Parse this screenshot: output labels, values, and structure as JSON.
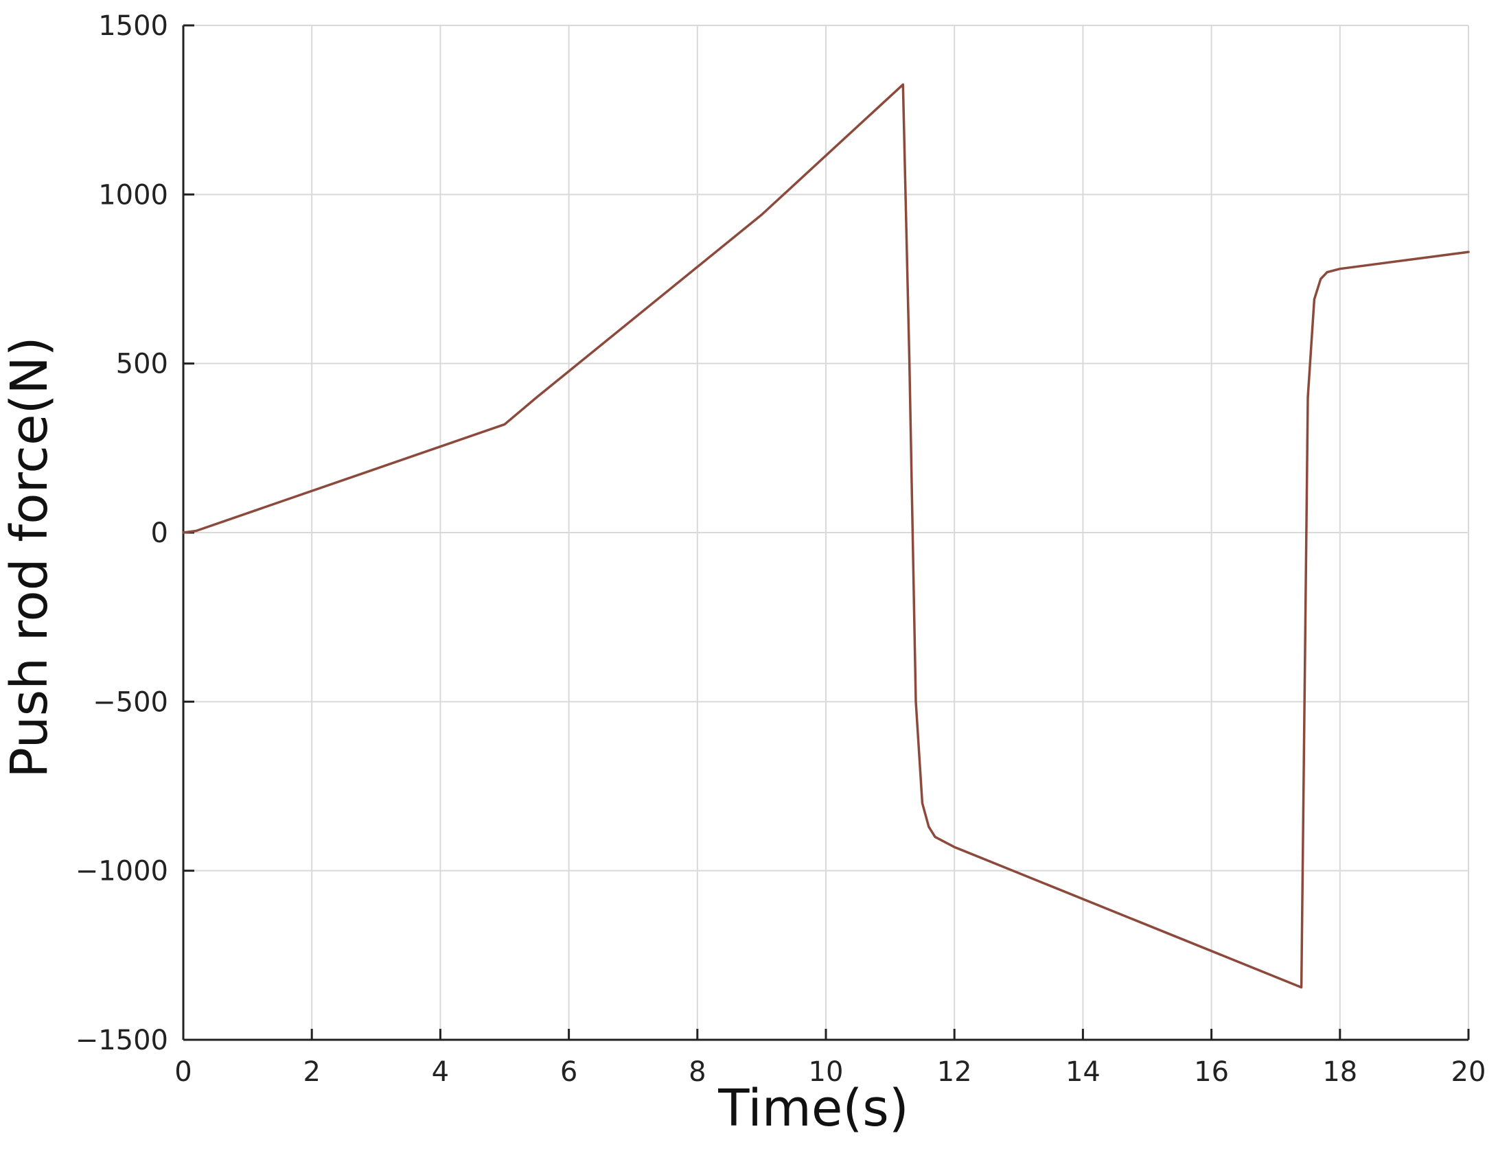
{
  "chart_data": {
    "type": "line",
    "xlabel": "Time(s)",
    "ylabel": "Push rod force(N)",
    "xlim": [
      0,
      20
    ],
    "ylim": [
      -1500,
      1500
    ],
    "xticks": [
      0,
      2,
      4,
      6,
      8,
      10,
      12,
      14,
      16,
      18,
      20
    ],
    "yticks": [
      -1500,
      -1000,
      -500,
      0,
      500,
      1000,
      1500
    ],
    "xtick_labels": [
      "0",
      "2",
      "4",
      "6",
      "8",
      "10",
      "12",
      "14",
      "16",
      "18",
      "20"
    ],
    "ytick_labels": [
      "−1500",
      "−1000",
      "−500",
      "0",
      "500",
      "1000",
      "1500"
    ],
    "grid": true,
    "series": [
      {
        "color": "#8b4a3c",
        "x": [
          0,
          0.2,
          5,
          5.5,
          9,
          11.2,
          11.3,
          11.4,
          11.5,
          11.6,
          11.7,
          12,
          17.4,
          17.5,
          17.6,
          17.7,
          17.8,
          18,
          20
        ],
        "y": [
          0,
          5,
          320,
          400,
          940,
          1325,
          500,
          -500,
          -800,
          -870,
          -900,
          -930,
          -1345,
          400,
          690,
          750,
          770,
          780,
          830
        ]
      }
    ]
  }
}
